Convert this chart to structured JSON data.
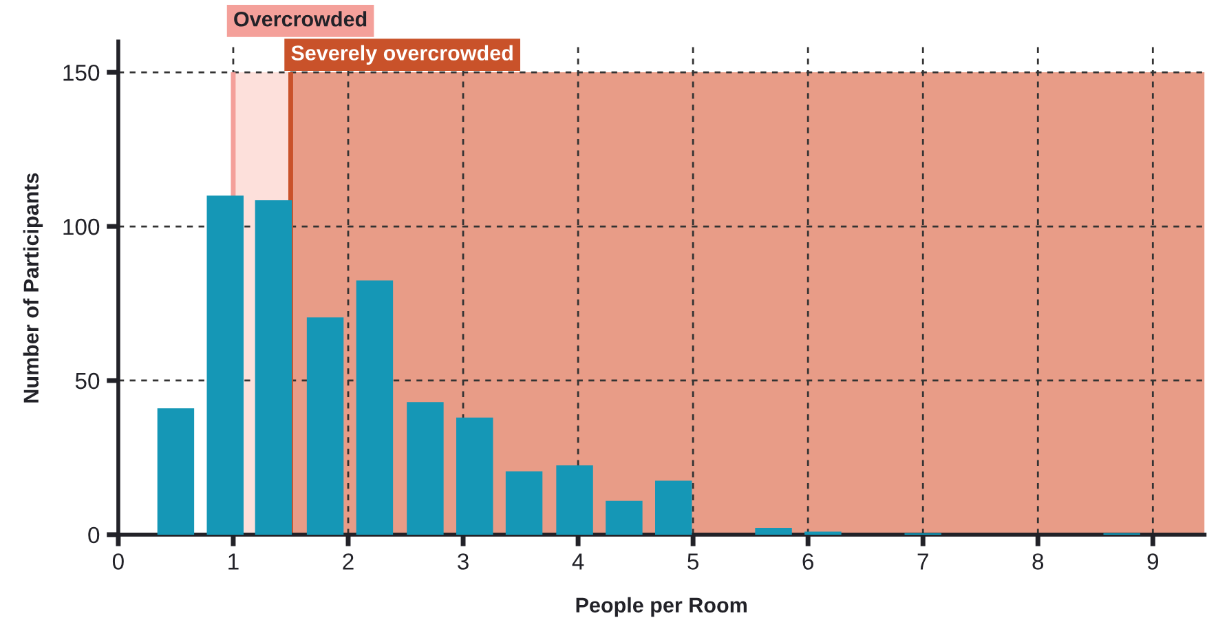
{
  "chart_data": {
    "type": "bar",
    "xlabel": "People per Room",
    "ylabel": "Number of Participants",
    "x": [
      0.5,
      0.93,
      1.35,
      1.8,
      2.23,
      2.67,
      3.1,
      3.53,
      3.97,
      4.4,
      4.83,
      5.7,
      6.13,
      7.0,
      8.73
    ],
    "values": [
      41,
      110,
      108.5,
      70.5,
      82.5,
      43,
      38,
      20.5,
      22.5,
      11,
      17.5,
      2.2,
      1,
      0.5,
      0.5
    ],
    "color": "#1597b6",
    "xlim": [
      0,
      9.45
    ],
    "ylim": [
      0,
      160
    ],
    "xticks": [
      0,
      1,
      2,
      3,
      4,
      5,
      6,
      7,
      8,
      9
    ],
    "yticks": [
      0,
      50,
      100,
      150
    ],
    "grid": true,
    "bands": [
      {
        "axis": "x",
        "from": 1,
        "to": 1.5,
        "color": "#fde0db"
      },
      {
        "axis": "x",
        "from": 1.5,
        "to": 9.45,
        "color": "#e89c87"
      }
    ],
    "ref_lines": [
      {
        "axis": "x",
        "value": 1,
        "label": "Overcrowded",
        "color": "#f4a09a"
      },
      {
        "axis": "x",
        "value": 1.5,
        "label": "Severely overcrowded",
        "color": "#c9522a"
      }
    ]
  }
}
